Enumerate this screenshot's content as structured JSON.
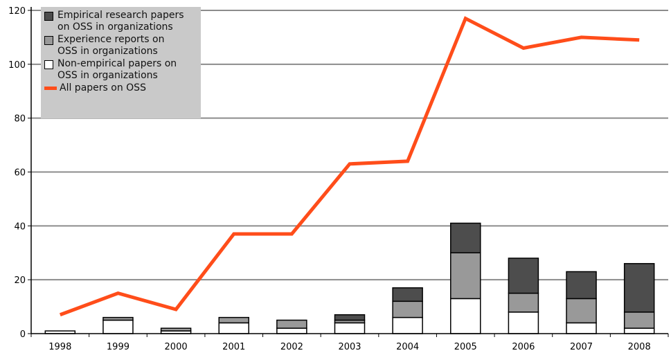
{
  "chart_data": {
    "type": "bar",
    "categories": [
      "1998",
      "1999",
      "2000",
      "2001",
      "2002",
      "2003",
      "2004",
      "2005",
      "2006",
      "2007",
      "2008"
    ],
    "series": [
      {
        "name": "Non-empirical papers on OSS in organizations",
        "kind": "bar",
        "color": "#ffffff",
        "values": [
          1,
          5,
          1,
          4,
          2,
          4,
          6,
          13,
          8,
          4,
          2
        ]
      },
      {
        "name": "Experience reports on OSS in organizations",
        "kind": "bar",
        "color": "#999999",
        "values": [
          0,
          1,
          1,
          2,
          3,
          1,
          6,
          17,
          7,
          9,
          6
        ]
      },
      {
        "name": "Empirical research papers on OSS in organizations",
        "kind": "bar",
        "color": "#4d4d4d",
        "values": [
          0,
          0,
          0,
          0,
          0,
          2,
          5,
          11,
          13,
          10,
          18
        ]
      },
      {
        "name": "All papers on OSS",
        "kind": "line",
        "color": "#ff4d1a",
        "values": [
          7,
          15,
          9,
          37,
          37,
          63,
          64,
          117,
          106,
          110,
          109
        ]
      }
    ],
    "yticks": [
      0,
      20,
      40,
      60,
      80,
      100,
      120
    ],
    "ylim": [
      0,
      120
    ],
    "title": "",
    "xlabel": "",
    "ylabel": "",
    "grid": true,
    "legend_position": "top-left",
    "legend": [
      {
        "label": "Empirical research papers\non OSS in organizations",
        "color": "#4d4d4d",
        "marker": "box"
      },
      {
        "label": "Experience reports on\nOSS in organizations",
        "color": "#999999",
        "marker": "box"
      },
      {
        "label": "Non-empirical papers on\nOSS in organizations",
        "color": "#ffffff",
        "marker": "box"
      },
      {
        "label": "All papers on OSS",
        "color": "#ff4d1a",
        "marker": "line"
      }
    ]
  }
}
